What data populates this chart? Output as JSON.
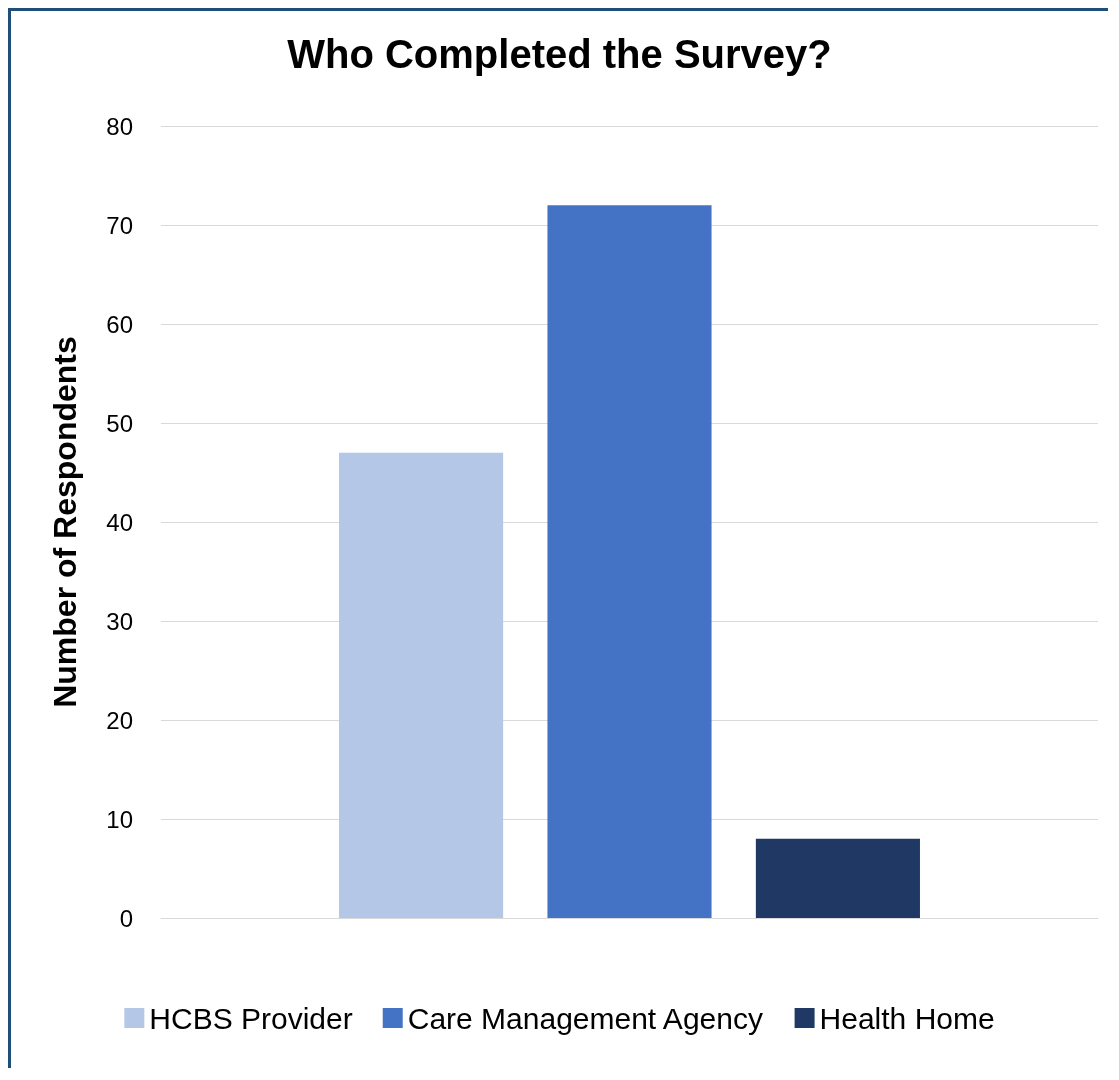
{
  "chart_data": {
    "type": "bar",
    "title": "Who Completed the Survey?",
    "ylabel": "Number of Respondents",
    "categories": [
      null
    ],
    "series": [
      {
        "name": "HCBS Provider",
        "color": "#b4c7e7",
        "values": [
          47
        ]
      },
      {
        "name": "Care Management Agency",
        "color": "#4472c4",
        "values": [
          72
        ]
      },
      {
        "name": "Health Home",
        "color": "#203864",
        "values": [
          8
        ]
      }
    ],
    "ylim": [
      0,
      80
    ],
    "yticks": [
      0,
      10,
      20,
      30,
      40,
      50,
      60,
      70,
      80
    ],
    "grid": "y",
    "legend": "bottom"
  }
}
